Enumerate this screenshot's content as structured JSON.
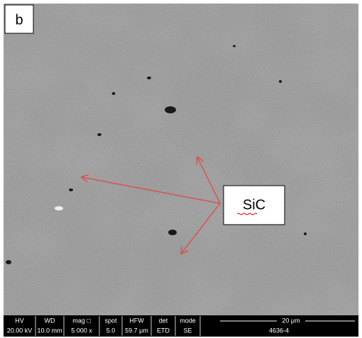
{
  "panel_label": "b",
  "annotation": "SiC",
  "info_bar": {
    "headers": [
      "HV",
      "WD",
      "mag □",
      "spot",
      "HFW",
      "det",
      "mode"
    ],
    "values": [
      "20.00 kV",
      "10.0 mm",
      "5 000 x",
      "5.0",
      "59.7 μm",
      "ETD",
      "SE"
    ],
    "scale": "20 μm",
    "sample": "4636-4"
  }
}
